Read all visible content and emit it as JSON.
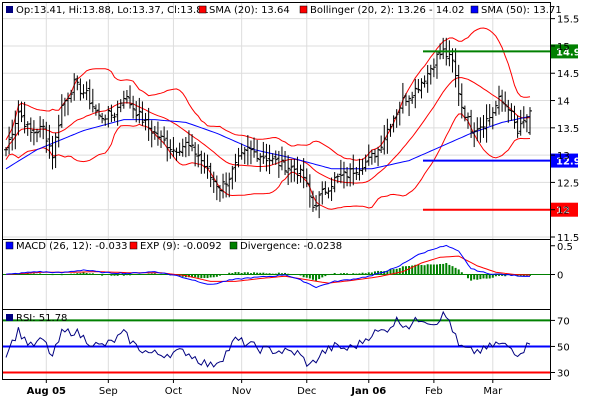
{
  "colors": {
    "frame": "#000000",
    "grid": "#dddddd",
    "price_bar": "#000000",
    "sma20": "#ff0000",
    "bollinger": "#ff0000",
    "sma50": "#0000ff",
    "macd": "#0000ff",
    "exp9": "#ff0000",
    "divergence": "#008000",
    "rsi_line": "#000080",
    "level_high": "#008000",
    "level_mid": "#0000ff",
    "level_low": "#ff0000",
    "label_text": "#ffffff"
  },
  "legend": {
    "ohlc": "Op:13.41, Hi:13.88, Lo:13.37, Cl:13.81",
    "sma20": "SMA (20): 13.64",
    "bollinger": "Bollinger (20, 2): 13.26 - 14.02",
    "sma50": "SMA (50): 13.71",
    "macd": "MACD (26, 12): -0.033",
    "exp9": "EXP (9): -0.0092",
    "divergence": "Divergence: -0.0238",
    "rsi": "RSI: 51.78"
  },
  "chart_data": [
    {
      "type": "ohlc",
      "panel": "price",
      "y_ticks": [
        "15.5",
        "15",
        "14.5",
        "14",
        "13.5",
        "13",
        "12.5",
        "12",
        "11.5"
      ],
      "ylim": [
        11.5,
        15.75
      ],
      "x_labels": [
        "Aug 05",
        "Sep",
        "Oct",
        "Nov",
        "Dec",
        "Jan 06",
        "Feb",
        "Mar"
      ],
      "x_label_bar_index": [
        13,
        33,
        54,
        76,
        97,
        117,
        138,
        157
      ],
      "bar_count": 170,
      "close_anchors": [
        [
          0,
          13.1
        ],
        [
          4,
          13.8
        ],
        [
          8,
          13.4
        ],
        [
          12,
          13.5
        ],
        [
          15,
          13.0
        ],
        [
          18,
          13.9
        ],
        [
          22,
          14.3
        ],
        [
          26,
          14.1
        ],
        [
          30,
          13.7
        ],
        [
          35,
          13.75
        ],
        [
          38,
          14.1
        ],
        [
          42,
          13.8
        ],
        [
          46,
          13.5
        ],
        [
          50,
          13.3
        ],
        [
          54,
          13.1
        ],
        [
          58,
          13.2
        ],
        [
          62,
          13.0
        ],
        [
          66,
          12.6
        ],
        [
          69,
          12.4
        ],
        [
          72,
          12.6
        ],
        [
          75,
          12.9
        ],
        [
          78,
          13.1
        ],
        [
          82,
          13.0
        ],
        [
          86,
          12.9
        ],
        [
          90,
          12.8
        ],
        [
          93,
          12.75
        ],
        [
          96,
          12.6
        ],
        [
          99,
          12.05
        ],
        [
          102,
          12.3
        ],
        [
          106,
          12.55
        ],
        [
          110,
          12.65
        ],
        [
          114,
          12.8
        ],
        [
          117,
          12.9
        ],
        [
          120,
          13.1
        ],
        [
          124,
          13.6
        ],
        [
          128,
          14.0
        ],
        [
          132,
          14.2
        ],
        [
          136,
          14.5
        ],
        [
          139,
          14.8
        ],
        [
          141,
          14.9
        ],
        [
          144,
          14.7
        ],
        [
          147,
          13.9
        ],
        [
          150,
          13.5
        ],
        [
          153,
          13.55
        ],
        [
          156,
          13.7
        ],
        [
          159,
          14.0
        ],
        [
          162,
          13.9
        ],
        [
          165,
          13.4
        ],
        [
          169,
          13.81
        ]
      ],
      "sma50_anchors": [
        [
          0,
          12.75
        ],
        [
          10,
          13.1
        ],
        [
          25,
          13.45
        ],
        [
          38,
          13.65
        ],
        [
          48,
          13.65
        ],
        [
          58,
          13.6
        ],
        [
          68,
          13.4
        ],
        [
          80,
          13.1
        ],
        [
          92,
          12.95
        ],
        [
          105,
          12.75
        ],
        [
          118,
          12.75
        ],
        [
          130,
          12.9
        ],
        [
          140,
          13.15
        ],
        [
          150,
          13.4
        ],
        [
          160,
          13.6
        ],
        [
          169,
          13.71
        ]
      ],
      "horizontal_levels": [
        {
          "value": 14.9,
          "label": "14.9",
          "color_key": "level_high"
        },
        {
          "value": 12.9,
          "label": "12.9",
          "color_key": "level_mid"
        },
        {
          "value": 12.0,
          "label": "12",
          "color_key": "level_low"
        }
      ],
      "last": {
        "open": 13.41,
        "high": 13.88,
        "low": 13.37,
        "close": 13.81,
        "sma20": 13.64,
        "bb_lower": 13.26,
        "bb_upper": 14.02,
        "sma50": 13.71
      }
    },
    {
      "type": "line",
      "panel": "macd",
      "y_ticks": [
        "0.5",
        "0"
      ],
      "ylim": [
        -0.6,
        0.6
      ],
      "macd_anchors": [
        [
          0,
          0.0
        ],
        [
          10,
          0.05
        ],
        [
          18,
          0.03
        ],
        [
          25,
          0.08
        ],
        [
          32,
          0.03
        ],
        [
          40,
          0.02
        ],
        [
          48,
          0.05
        ],
        [
          55,
          -0.02
        ],
        [
          62,
          -0.12
        ],
        [
          66,
          -0.18
        ],
        [
          72,
          -0.1
        ],
        [
          78,
          -0.06
        ],
        [
          86,
          -0.03
        ],
        [
          90,
          0.0
        ],
        [
          96,
          -0.12
        ],
        [
          100,
          -0.22
        ],
        [
          106,
          -0.12
        ],
        [
          112,
          -0.08
        ],
        [
          118,
          -0.02
        ],
        [
          126,
          0.12
        ],
        [
          132,
          0.32
        ],
        [
          138,
          0.45
        ],
        [
          142,
          0.5
        ],
        [
          146,
          0.4
        ],
        [
          150,
          0.1
        ],
        [
          155,
          0.02
        ],
        [
          160,
          0.0
        ],
        [
          165,
          -0.02
        ],
        [
          169,
          -0.033
        ]
      ],
      "exp9_anchors": [
        [
          0,
          0.0
        ],
        [
          12,
          0.04
        ],
        [
          22,
          0.04
        ],
        [
          30,
          0.05
        ],
        [
          40,
          0.03
        ],
        [
          50,
          0.03
        ],
        [
          58,
          -0.02
        ],
        [
          66,
          -0.12
        ],
        [
          74,
          -0.12
        ],
        [
          82,
          -0.07
        ],
        [
          90,
          -0.03
        ],
        [
          98,
          -0.1
        ],
        [
          104,
          -0.15
        ],
        [
          112,
          -0.1
        ],
        [
          120,
          -0.04
        ],
        [
          128,
          0.05
        ],
        [
          134,
          0.2
        ],
        [
          140,
          0.3
        ],
        [
          146,
          0.32
        ],
        [
          152,
          0.15
        ],
        [
          158,
          0.04
        ],
        [
          164,
          0.0
        ],
        [
          169,
          -0.0092
        ]
      ],
      "last": {
        "macd": -0.033,
        "exp9": -0.0092,
        "divergence": -0.0238
      }
    },
    {
      "type": "line",
      "panel": "rsi",
      "y_ticks": [
        "70",
        "50",
        "30"
      ],
      "ylim": [
        25,
        78
      ],
      "reference_levels": [
        70,
        50,
        30
      ],
      "rsi_anchors": [
        [
          0,
          45
        ],
        [
          4,
          62
        ],
        [
          8,
          50
        ],
        [
          12,
          55
        ],
        [
          15,
          42
        ],
        [
          18,
          60
        ],
        [
          22,
          62
        ],
        [
          26,
          55
        ],
        [
          30,
          50
        ],
        [
          34,
          53
        ],
        [
          38,
          60
        ],
        [
          42,
          50
        ],
        [
          46,
          45
        ],
        [
          50,
          44
        ],
        [
          54,
          45
        ],
        [
          58,
          46
        ],
        [
          62,
          40
        ],
        [
          66,
          35
        ],
        [
          70,
          42
        ],
        [
          74,
          55
        ],
        [
          78,
          52
        ],
        [
          82,
          48
        ],
        [
          86,
          47
        ],
        [
          90,
          46
        ],
        [
          94,
          45
        ],
        [
          98,
          35
        ],
        [
          102,
          45
        ],
        [
          106,
          50
        ],
        [
          110,
          48
        ],
        [
          114,
          52
        ],
        [
          118,
          60
        ],
        [
          122,
          62
        ],
        [
          126,
          70
        ],
        [
          130,
          66
        ],
        [
          134,
          72
        ],
        [
          138,
          68
        ],
        [
          141,
          74
        ],
        [
          143,
          70
        ],
        [
          146,
          50
        ],
        [
          150,
          46
        ],
        [
          154,
          47
        ],
        [
          158,
          52
        ],
        [
          162,
          50
        ],
        [
          165,
          45
        ],
        [
          169,
          51.78
        ]
      ],
      "last": {
        "rsi": 51.78
      }
    }
  ]
}
